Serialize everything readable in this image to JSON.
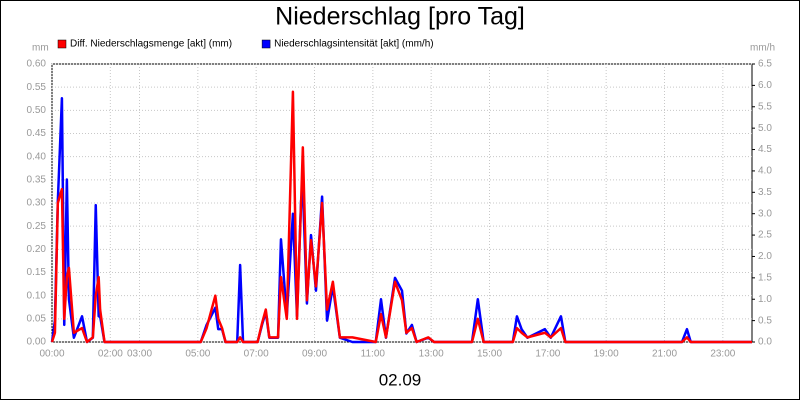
{
  "chart_data": {
    "type": "line",
    "title": "Niederschlag [pro Tag]",
    "x_label": "02.09",
    "y_label": "mm",
    "y2_label": "mm/h",
    "x": [
      0,
      0.1,
      0.2,
      0.34,
      0.42,
      0.51,
      0.58,
      0.75,
      1.03,
      1.2,
      1.4,
      1.5,
      1.6,
      1.65,
      1.8,
      5.1,
      5.3,
      5.6,
      5.7,
      5.83,
      5.95,
      6.35,
      6.45,
      6.55,
      7.05,
      7.2,
      7.33,
      7.45,
      7.75,
      7.85,
      8.05,
      8.26,
      8.4,
      8.54,
      8.6,
      8.74,
      8.88,
      9.05,
      9.26,
      9.43,
      9.63,
      9.87,
      10.3,
      11.1,
      11.28,
      11.45,
      11.76,
      12.0,
      12.15,
      12.34,
      12.5,
      12.9,
      13.1,
      14.4,
      14.6,
      14.8,
      15.8,
      15.94,
      16.1,
      16.3,
      16.9,
      17.1,
      17.45,
      17.6,
      21.6,
      21.77,
      21.9,
      24
    ],
    "series": [
      {
        "name": "Diff. Niederschlagsmenge [akt] (mm)",
        "color": "#ff0000",
        "values": [
          0,
          0.02,
          0.3,
          0.33,
          0.05,
          0.14,
          0.16,
          0.02,
          0.03,
          0,
          0.01,
          0.1,
          0.14,
          0.07,
          0,
          0,
          0.03,
          0.1,
          0.05,
          0.03,
          0,
          0,
          0.01,
          0,
          0,
          0.04,
          0.07,
          0.01,
          0.01,
          0.14,
          0.05,
          0.54,
          0.05,
          0.3,
          0.42,
          0.09,
          0.22,
          0.12,
          0.3,
          0.07,
          0.13,
          0.01,
          0.01,
          0,
          0.06,
          0.01,
          0.13,
          0.09,
          0.02,
          0.03,
          0,
          0.01,
          0,
          0,
          0.05,
          0,
          0,
          0.03,
          0.02,
          0.01,
          0.02,
          0.01,
          0.03,
          0,
          0,
          0.01,
          0,
          0
        ]
      },
      {
        "name": "Niederschlagsintensität [akt] (mm/h)",
        "color": "#0000ff",
        "axis": "y2",
        "values": [
          0,
          0.5,
          3.3,
          5.7,
          0.4,
          3.8,
          1.0,
          0.1,
          0.6,
          0,
          0.1,
          3.2,
          0.6,
          0.6,
          0,
          0,
          0.4,
          0.8,
          0.3,
          0.3,
          0,
          0,
          1.8,
          0,
          0,
          0.4,
          0.7,
          0.1,
          0.1,
          2.4,
          0.6,
          3.0,
          0.6,
          3.3,
          3.6,
          0.9,
          2.5,
          1.2,
          3.4,
          0.5,
          1.3,
          0.1,
          0,
          0,
          1.0,
          0.1,
          1.5,
          1.2,
          0.2,
          0.4,
          0,
          0.1,
          0,
          0,
          1.0,
          0,
          0,
          0.6,
          0.3,
          0.1,
          0.3,
          0.1,
          0.6,
          0,
          0,
          0.3,
          0,
          0
        ]
      }
    ],
    "xlim": [
      0,
      24
    ],
    "xticks": [
      {
        "value": 0,
        "label": "00:00"
      },
      {
        "value": 2,
        "label": "02:00"
      },
      {
        "value": 3,
        "label": "03:00"
      },
      {
        "value": 5,
        "label": "05:00"
      },
      {
        "value": 7,
        "label": "07:00"
      },
      {
        "value": 9,
        "label": "09:00"
      },
      {
        "value": 11,
        "label": "11:00"
      },
      {
        "value": 13,
        "label": "13:00"
      },
      {
        "value": 15,
        "label": "15:00"
      },
      {
        "value": 17,
        "label": "17:00"
      },
      {
        "value": 19,
        "label": "19:00"
      },
      {
        "value": 21,
        "label": "21:00"
      },
      {
        "value": 23,
        "label": "23:00"
      }
    ],
    "ylim": [
      0,
      0.6
    ],
    "yticks": [
      {
        "value": 0,
        "label": "0.00"
      },
      0.05,
      {
        "value": 0.1,
        "label": "0.10"
      },
      0.15,
      {
        "value": 0.2,
        "label": "0.20"
      },
      0.25,
      {
        "value": 0.3,
        "label": "0.30"
      },
      0.35,
      {
        "value": 0.4,
        "label": "0.40"
      },
      0.45,
      {
        "value": 0.5,
        "label": "0.50"
      },
      0.55,
      {
        "value": 0.6,
        "label": "0.60"
      }
    ],
    "y2lim": [
      0,
      6.5
    ],
    "y2ticks": [
      {
        "value": 0,
        "label": "0.0"
      },
      0.5,
      {
        "value": 1,
        "label": "1.0"
      },
      1.5,
      {
        "value": 2,
        "label": "2.0"
      },
      2.5,
      {
        "value": 3,
        "label": "3.0"
      },
      3.5,
      {
        "value": 4,
        "label": "4.0"
      },
      4.5,
      {
        "value": 5,
        "label": "5.0"
      },
      5.5,
      {
        "value": 6,
        "label": "6.0"
      },
      6.5
    ],
    "grid": true
  }
}
